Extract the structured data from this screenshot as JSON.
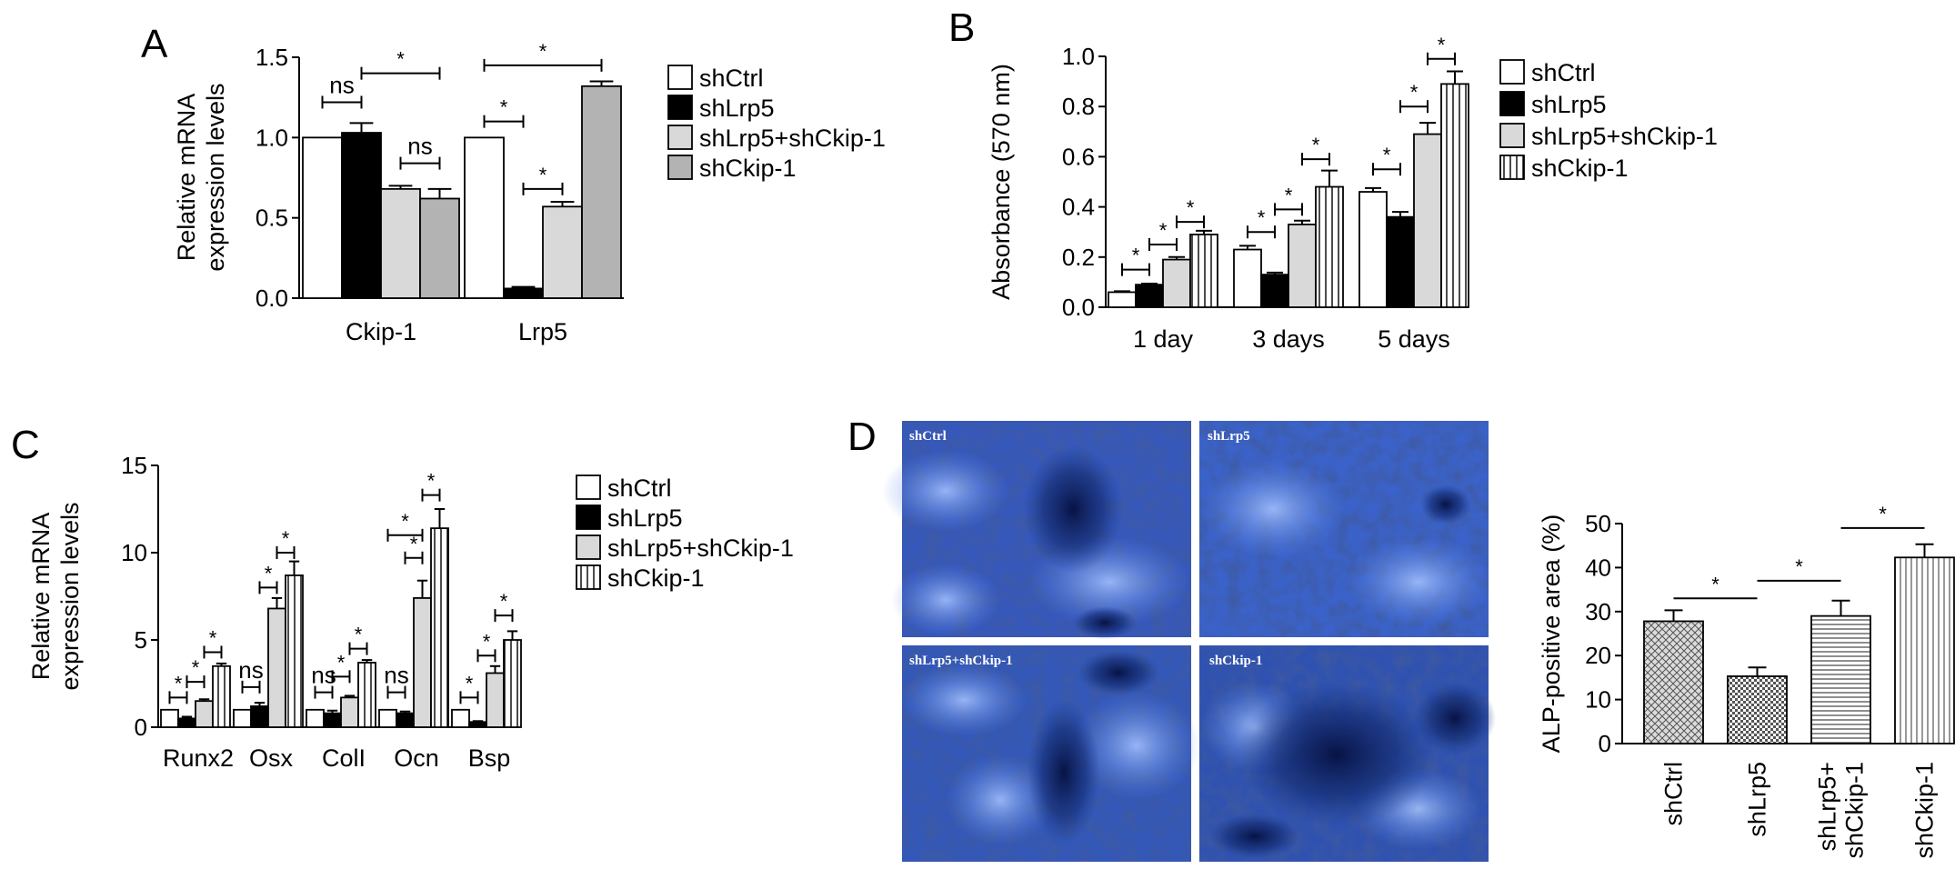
{
  "panels": {
    "a": {
      "letter": "A"
    },
    "b": {
      "letter": "B"
    },
    "c": {
      "letter": "C"
    },
    "d": {
      "letter": "D"
    }
  },
  "colors": {
    "white": "#ffffff",
    "black": "#000000",
    "light_gray": "#d9d9d9",
    "mid_gray": "#b3b3b3",
    "stain_blue": "#3a5fc0",
    "stain_dark": "#0a1a5a"
  },
  "micrographs": [
    {
      "label": "shCtrl"
    },
    {
      "label": "shLrp5"
    },
    {
      "label": "shLrp5+shCkip-1"
    },
    {
      "label": "shCkip-1"
    }
  ],
  "chart_data": [
    {
      "panel": "A",
      "type": "bar",
      "categories": [
        "Ckip-1",
        "Lrp5"
      ],
      "ylabel": "Relative mRNA\nexpression levels",
      "ylim": [
        0,
        1.5
      ],
      "yticks": [
        "0.0",
        "0.5",
        "1.0",
        "1.5"
      ],
      "legend_placement": "right",
      "series": [
        {
          "name": "shCtrl",
          "pattern": "white",
          "values": [
            1.0,
            1.0
          ],
          "errors": [
            0,
            0
          ]
        },
        {
          "name": "shLrp5",
          "pattern": "black",
          "values": [
            1.03,
            0.06
          ],
          "errors": [
            0.06,
            0.01
          ]
        },
        {
          "name": "shLrp5+shCkip-1",
          "pattern": "light",
          "values": [
            0.68,
            0.57
          ],
          "errors": [
            0.02,
            0.03
          ]
        },
        {
          "name": "shCkip-1",
          "pattern": "mid",
          "values": [
            0.62,
            1.32
          ],
          "errors": [
            0.06,
            0.03
          ]
        }
      ],
      "annotations": [
        {
          "text": "ns",
          "group": 0,
          "from": 0,
          "to": 1,
          "level": 1.22
        },
        {
          "text": "*",
          "group": 0,
          "from": 1,
          "to": 3,
          "level": 1.4
        },
        {
          "text": "ns",
          "group": 0,
          "from": 2,
          "to": 3,
          "level": 0.84
        },
        {
          "text": "*",
          "group": 1,
          "from": 0,
          "to": 3,
          "level": 1.45
        },
        {
          "text": "*",
          "group": 1,
          "from": 0,
          "to": 1,
          "level": 1.1
        },
        {
          "text": "*",
          "group": 1,
          "from": 1,
          "to": 2,
          "level": 0.68
        }
      ]
    },
    {
      "panel": "B",
      "type": "bar",
      "categories": [
        "1 day",
        "3 days",
        "5 days"
      ],
      "ylabel": "Absorbance (570 nm)",
      "ylim": [
        0,
        1.0
      ],
      "yticks": [
        "0.0",
        "0.2",
        "0.4",
        "0.6",
        "0.8",
        "1.0"
      ],
      "legend_placement": "right",
      "series": [
        {
          "name": "shCtrl",
          "pattern": "white",
          "values": [
            0.06,
            0.23,
            0.46
          ],
          "errors": [
            0.004,
            0.015,
            0.015
          ]
        },
        {
          "name": "shLrp5",
          "pattern": "black",
          "values": [
            0.09,
            0.13,
            0.36
          ],
          "errors": [
            0.004,
            0.008,
            0.02
          ]
        },
        {
          "name": "shLrp5+shCkip-1",
          "pattern": "light",
          "values": [
            0.19,
            0.33,
            0.69
          ],
          "errors": [
            0.01,
            0.015,
            0.045
          ]
        },
        {
          "name": "shCkip-1",
          "pattern": "vstripe",
          "values": [
            0.29,
            0.48,
            0.89
          ],
          "errors": [
            0.015,
            0.065,
            0.05
          ]
        }
      ],
      "annotations": [
        {
          "text": "*",
          "group": 0,
          "from": 0,
          "to": 1,
          "level": 0.15
        },
        {
          "text": "*",
          "group": 0,
          "from": 1,
          "to": 2,
          "level": 0.25
        },
        {
          "text": "*",
          "group": 0,
          "from": 2,
          "to": 3,
          "level": 0.34
        },
        {
          "text": "*",
          "group": 1,
          "from": 0,
          "to": 1,
          "level": 0.3
        },
        {
          "text": "*",
          "group": 1,
          "from": 1,
          "to": 2,
          "level": 0.39
        },
        {
          "text": "*",
          "group": 1,
          "from": 2,
          "to": 3,
          "level": 0.59
        },
        {
          "text": "*",
          "group": 2,
          "from": 0,
          "to": 1,
          "level": 0.55
        },
        {
          "text": "*",
          "group": 2,
          "from": 1,
          "to": 2,
          "level": 0.8
        },
        {
          "text": "*",
          "group": 2,
          "from": 2,
          "to": 3,
          "level": 0.99
        }
      ]
    },
    {
      "panel": "C",
      "type": "bar",
      "categories": [
        "Runx2",
        "Osx",
        "ColI",
        "Ocn",
        "Bsp"
      ],
      "ylabel": "Relative mRNA\nexpression levels",
      "ylim": [
        0,
        15
      ],
      "yticks": [
        "0",
        "5",
        "10",
        "15"
      ],
      "legend_placement": "right",
      "series": [
        {
          "name": "shCtrl",
          "pattern": "white",
          "values": [
            1.0,
            1.0,
            1.0,
            1.0,
            1.0
          ],
          "errors": [
            0,
            0,
            0,
            0,
            0
          ]
        },
        {
          "name": "shLrp5",
          "pattern": "black",
          "values": [
            0.5,
            1.2,
            0.8,
            0.8,
            0.3
          ],
          "errors": [
            0.1,
            0.2,
            0.15,
            0.1,
            0.05
          ]
        },
        {
          "name": "shLrp5+shCkip-1",
          "pattern": "light",
          "values": [
            1.5,
            6.8,
            1.7,
            7.4,
            3.1
          ],
          "errors": [
            0.1,
            0.6,
            0.1,
            1.0,
            0.4
          ]
        },
        {
          "name": "shCkip-1",
          "pattern": "vstripe",
          "values": [
            3.5,
            8.7,
            3.7,
            11.4,
            5.0
          ],
          "errors": [
            0.15,
            0.8,
            0.15,
            1.1,
            0.5
          ]
        }
      ],
      "annotations": [
        {
          "text": "*",
          "group": 0,
          "from": 0,
          "to": 1,
          "level": 1.7
        },
        {
          "text": "*",
          "group": 0,
          "from": 1,
          "to": 2,
          "level": 2.6
        },
        {
          "text": "*",
          "group": 0,
          "from": 2,
          "to": 3,
          "level": 4.3
        },
        {
          "text": "ns",
          "group": 1,
          "from": 0,
          "to": 1,
          "level": 2.3
        },
        {
          "text": "*",
          "group": 1,
          "from": 1,
          "to": 2,
          "level": 8.0
        },
        {
          "text": "*",
          "group": 1,
          "from": 2,
          "to": 3,
          "level": 10.0
        },
        {
          "text": "ns",
          "group": 2,
          "from": 0,
          "to": 1,
          "level": 2.0
        },
        {
          "text": "*",
          "group": 2,
          "from": 1,
          "to": 2,
          "level": 2.9
        },
        {
          "text": "*",
          "group": 2,
          "from": 2,
          "to": 3,
          "level": 4.5
        },
        {
          "text": "ns",
          "group": 3,
          "from": 0,
          "to": 1,
          "level": 2.0
        },
        {
          "text": "*",
          "group": 3,
          "from": 1,
          "to": 2,
          "level": 9.7
        },
        {
          "text": "*",
          "group": 3,
          "from": 0,
          "to": 2,
          "level": 11.0
        },
        {
          "text": "*",
          "group": 3,
          "from": 2,
          "to": 3,
          "level": 13.3
        },
        {
          "text": "*",
          "group": 4,
          "from": 0,
          "to": 1,
          "level": 1.7
        },
        {
          "text": "*",
          "group": 4,
          "from": 1,
          "to": 2,
          "level": 4.1
        },
        {
          "text": "*",
          "group": 4,
          "from": 2,
          "to": 3,
          "level": 6.4
        }
      ]
    },
    {
      "panel": "D",
      "type": "bar",
      "categories": [
        "shCtrl",
        "shLrp5",
        "shLrp5+\nshCkip-1",
        "shCkip-1"
      ],
      "ylabel": "ALP-positive area (%)",
      "ylim": [
        0,
        50
      ],
      "yticks": [
        "0",
        "10",
        "20",
        "30",
        "40",
        "50"
      ],
      "series": [
        {
          "name": "",
          "patterns": [
            "crosshatch",
            "checker",
            "hline",
            "vline"
          ],
          "values": [
            27.8,
            15.3,
            29.0,
            42.3
          ],
          "errors": [
            2.5,
            2.0,
            3.5,
            3.0
          ]
        }
      ],
      "annotations": [
        {
          "text": "*",
          "from": 0,
          "to": 1,
          "level": 33
        },
        {
          "text": "*",
          "from": 1,
          "to": 2,
          "level": 37
        },
        {
          "text": "*",
          "from": 2,
          "to": 3,
          "level": 49
        }
      ]
    }
  ]
}
